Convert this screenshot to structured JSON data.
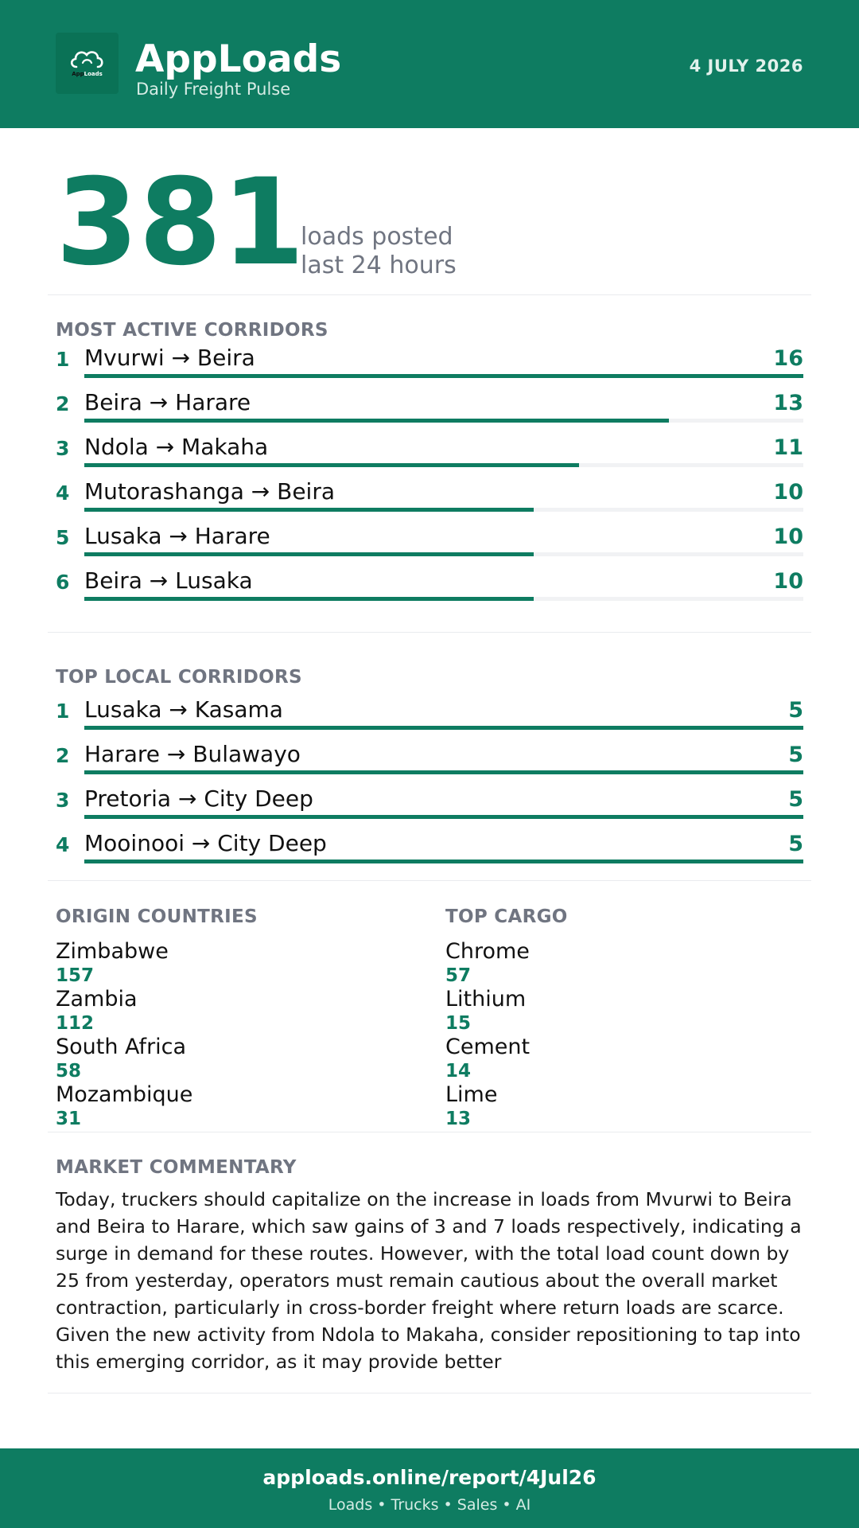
{
  "header": {
    "app_name": "AppLoads",
    "subtitle": "Daily Freight Pulse",
    "date": "4 JULY 2026",
    "logo_text_dark": "App",
    "logo_text_light": "Loads",
    "brand_color": "#0e7c61"
  },
  "headline": {
    "value": "381",
    "label_line1": "loads posted",
    "label_line2": "last 24 hours"
  },
  "active_corridors": {
    "title": "MOST ACTIVE CORRIDORS",
    "items": [
      {
        "rank": "1",
        "route": "Mvurwi → Beira",
        "count": 16
      },
      {
        "rank": "2",
        "route": "Beira → Harare",
        "count": 13
      },
      {
        "rank": "3",
        "route": "Ndola → Makaha",
        "count": 11
      },
      {
        "rank": "4",
        "route": "Mutorashanga → Beira",
        "count": 10
      },
      {
        "rank": "5",
        "route": "Lusaka → Harare",
        "count": 10
      },
      {
        "rank": "6",
        "route": "Beira → Lusaka",
        "count": 10
      }
    ]
  },
  "local_corridors": {
    "title": "TOP LOCAL CORRIDORS",
    "items": [
      {
        "rank": "1",
        "route": "Lusaka → Kasama",
        "count": 5
      },
      {
        "rank": "2",
        "route": "Harare → Bulawayo",
        "count": 5
      },
      {
        "rank": "3",
        "route": "Pretoria → City Deep",
        "count": 5
      },
      {
        "rank": "4",
        "route": "Mooinooi → City Deep",
        "count": 5
      }
    ]
  },
  "origin_countries": {
    "title": "ORIGIN COUNTRIES",
    "items": [
      {
        "name": "Zimbabwe",
        "value": "157"
      },
      {
        "name": "Zambia",
        "value": "112"
      },
      {
        "name": "South Africa",
        "value": "58"
      },
      {
        "name": "Mozambique",
        "value": "31"
      }
    ]
  },
  "top_cargo": {
    "title": "TOP CARGO",
    "items": [
      {
        "name": "Chrome",
        "value": "57"
      },
      {
        "name": "Lithium",
        "value": "15"
      },
      {
        "name": "Cement",
        "value": "14"
      },
      {
        "name": "Lime",
        "value": "13"
      }
    ]
  },
  "commentary": {
    "title": "MARKET COMMENTARY",
    "text": "Today, truckers should capitalize on the increase in loads from Mvurwi to Beira and Beira to Harare, which saw gains of 3 and 7 loads respectively, indicating a surge in demand for these routes. However, with the total load count down by 25 from yesterday, operators must remain cautious about the overall market contraction, particularly in cross-border freight where return loads are scarce. Given the new activity from Ndola to Makaha, consider repositioning to tap into this emerging corridor, as it may provide better"
  },
  "footer": {
    "url": "apploads.online/report/4Jul26",
    "tagline": "Loads • Trucks • Sales • AI"
  }
}
